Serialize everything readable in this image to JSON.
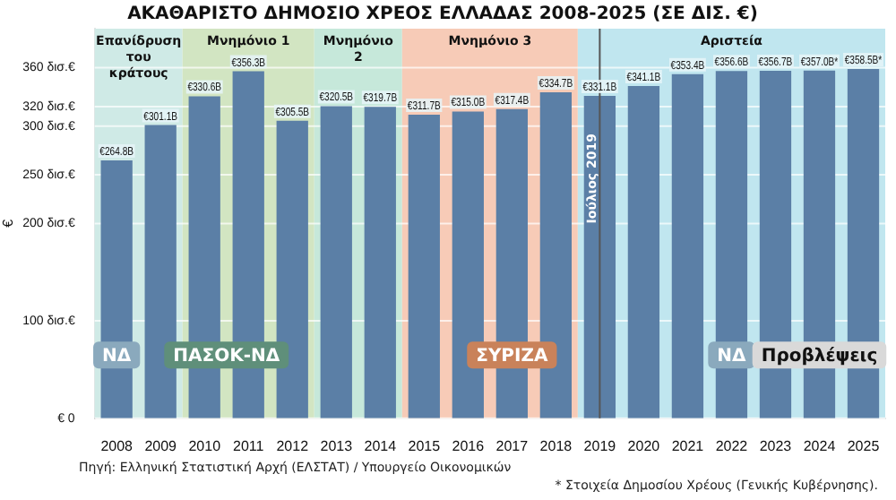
{
  "chart_data": {
    "type": "bar",
    "title": "ΑΚΑΘΑΡΙΣΤΟ ΔΗΜΟΣΙΟ ΧΡΕΟΣ ΕΛΛΑΔΑΣ 2008-2025 (ΣΕ ΔΙΣ. €)",
    "ylabel": "€",
    "categories": [
      "2008",
      "2009",
      "2010",
      "2011",
      "2012",
      "2013",
      "2014",
      "2015",
      "2016",
      "2017",
      "2018",
      "2019",
      "2020",
      "2021",
      "2022",
      "2023",
      "2024",
      "2025"
    ],
    "values": [
      264.8,
      301.1,
      330.6,
      356.3,
      305.5,
      320.5,
      319.7,
      311.7,
      315.0,
      317.4,
      334.7,
      331.1,
      341.1,
      353.4,
      356.6,
      356.7,
      357.0,
      358.5
    ],
    "value_labels": [
      "€264.8B",
      "€301.1B",
      "€330.6B",
      "€356.3B",
      "€305.5B",
      "€320.5B",
      "€319.7B",
      "€311.7B",
      "€315.0B",
      "€317.4B",
      "€334.7B",
      "€331.1B",
      "€341.1B",
      "€353.4B",
      "€356.6B",
      "€356.7B",
      "€357.0B*",
      "€358.5B*"
    ],
    "color": "#5b7fa6",
    "ylim": [
      0,
      400
    ],
    "yticks": [
      {
        "value": 0,
        "label": "€ 0"
      },
      {
        "value": 100,
        "label": "100 δισ.€"
      },
      {
        "value": 200,
        "label": "200 δισ.€"
      },
      {
        "value": 250,
        "label": "250 δισ.€"
      },
      {
        "value": 300,
        "label": "300 δισ.€"
      },
      {
        "value": 320,
        "label": "320 δισ.€"
      },
      {
        "value": 360,
        "label": "360 δισ.€"
      }
    ],
    "grid": "y",
    "legend": false,
    "bands": [
      {
        "axis": "x",
        "from": "2008",
        "to": "2009",
        "label": "Επανίδρυση του κράτους",
        "color": "#cfeae6"
      },
      {
        "axis": "x",
        "from": "2010",
        "to": "2012",
        "label": "Μνημόνιο 1",
        "color": "#d2e5c2"
      },
      {
        "axis": "x",
        "from": "2013",
        "to": "2014",
        "label": "Μνημόνιο 2",
        "color": "#c6e8da"
      },
      {
        "axis": "x",
        "from": "2015",
        "to": "2018",
        "label": "Μνημόνιο 3",
        "color": "#f7cbb7"
      },
      {
        "axis": "x",
        "from": "2019",
        "to": "2025",
        "label": "Αριστεία",
        "color": "#c0e6ef"
      }
    ],
    "ref_lines": [
      {
        "axis": "x",
        "value": "2019",
        "label": "Ιούλιος 2019",
        "color": "#555555"
      }
    ],
    "annotations": [
      "ΝΔ",
      "ΠΑΣΟΚ-ΝΔ",
      "ΣΥΡΙΖΑ",
      "ΝΔ",
      "Προβλέψεις",
      "Πηγή: Ελληνική Στατιστική Αρχή (ΕΛΣΤΑΤ) / Υπουργείο Οικονομικών",
      "* Στοιχεία Δημοσίου Χρέους (Γενικής Κυβέρνησης)."
    ]
  }
}
